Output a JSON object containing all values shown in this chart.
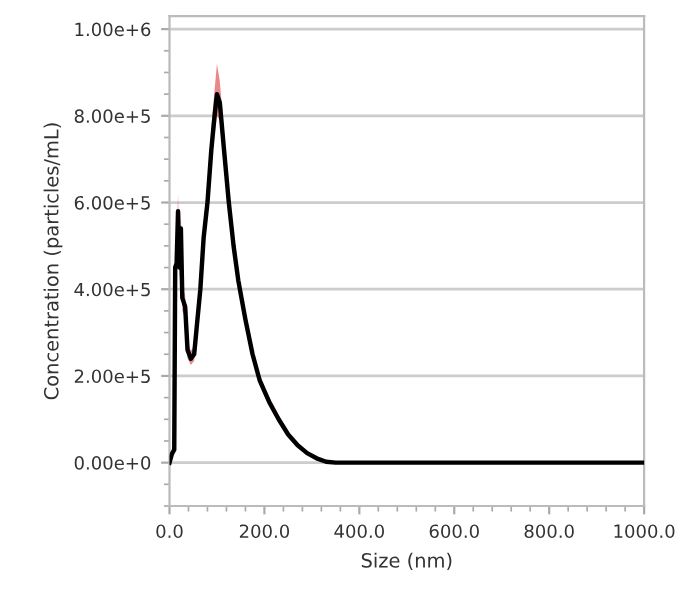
{
  "chart_data": {
    "type": "line",
    "xlabel": "Size (nm)",
    "ylabel": "Concentration (particles/mL)",
    "xlim": [
      0,
      1000
    ],
    "xticks": [
      {
        "value": 0,
        "label": "0.0"
      },
      {
        "value": 200,
        "label": "200.0"
      },
      {
        "value": 400,
        "label": "400.0"
      },
      {
        "value": 600,
        "label": "600.0"
      },
      {
        "value": 800,
        "label": "800.0"
      },
      {
        "value": 1000,
        "label": "1000.0"
      }
    ],
    "ylim": [
      -100000,
      1030000
    ],
    "yticks": [
      {
        "value": 0,
        "label": "0.00e+0"
      },
      {
        "value": 200000,
        "label": "2.00e+5"
      },
      {
        "value": 400000,
        "label": "4.00e+5"
      },
      {
        "value": 600000,
        "label": "6.00e+5"
      },
      {
        "value": 800000,
        "label": "8.00e+5"
      },
      {
        "value": 1000000,
        "label": "1.00e+6"
      }
    ],
    "grid": "y",
    "legend": false,
    "marker": "none",
    "line_style": "solid",
    "series": [
      {
        "color": "#000000",
        "x": [
          0,
          5,
          10,
          12,
          15,
          18,
          21,
          24,
          27,
          33,
          38,
          45,
          52,
          58,
          65,
          72,
          80,
          88,
          95,
          100,
          106,
          115,
          125,
          135,
          145,
          160,
          175,
          190,
          210,
          230,
          250,
          270,
          290,
          310,
          330,
          350,
          1000
        ],
        "values": [
          0,
          20000,
          30000,
          450000,
          460000,
          580000,
          450000,
          540000,
          380000,
          360000,
          260000,
          240000,
          250000,
          320000,
          400000,
          520000,
          600000,
          720000,
          800000,
          850000,
          830000,
          720000,
          600000,
          500000,
          420000,
          330000,
          250000,
          190000,
          140000,
          100000,
          65000,
          40000,
          22000,
          10000,
          2000,
          0,
          0
        ],
        "lower": [
          0,
          15000,
          25000,
          420000,
          430000,
          540000,
          420000,
          500000,
          350000,
          335000,
          240000,
          225000,
          235000,
          300000,
          375000,
          490000,
          565000,
          680000,
          760000,
          800000,
          790000,
          690000,
          575000,
          480000,
          405000,
          315000,
          238000,
          180000,
          130000,
          92000,
          60000,
          36000,
          19000,
          8000,
          1000,
          0,
          0
        ],
        "upper": [
          0,
          25000,
          35000,
          480000,
          500000,
          620000,
          480000,
          580000,
          410000,
          385000,
          280000,
          258000,
          268000,
          345000,
          430000,
          555000,
          640000,
          770000,
          860000,
          920000,
          880000,
          760000,
          630000,
          525000,
          440000,
          348000,
          265000,
          202000,
          152000,
          110000,
          72000,
          45000,
          26000,
          12000,
          3000,
          0,
          0
        ]
      }
    ]
  }
}
